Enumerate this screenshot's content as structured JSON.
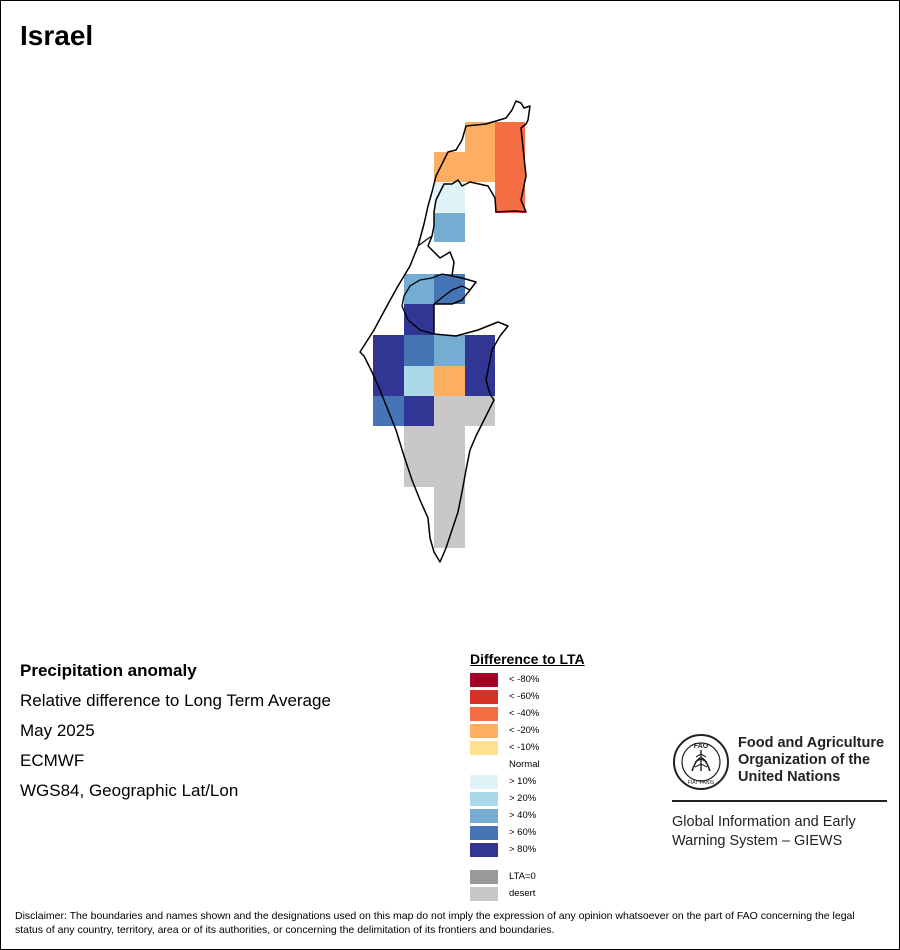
{
  "map_title": "Israel",
  "meta": {
    "line1": "Precipitation anomaly",
    "line2": "Relative difference to Long Term Average",
    "line3": "May 2025",
    "line4": "ECMWF",
    "line5": "WGS84, Geographic Lat/Lon"
  },
  "legend": {
    "title": "Difference to LTA",
    "items": [
      {
        "label": "< -80%",
        "color": "#a50026"
      },
      {
        "label": "< -60%",
        "color": "#d73027"
      },
      {
        "label": "< -40%",
        "color": "#f46d43"
      },
      {
        "label": "< -20%",
        "color": "#fdae61"
      },
      {
        "label": "< -10%",
        "color": "#fee090"
      },
      {
        "label": "Normal",
        "color": "#ffffff"
      },
      {
        "label": "> 10%",
        "color": "#e0f3f8"
      },
      {
        "label": "> 20%",
        "color": "#abd9e9"
      },
      {
        "label": "> 40%",
        "color": "#74add1"
      },
      {
        "label": "> 60%",
        "color": "#4575b4"
      },
      {
        "label": "> 80%",
        "color": "#313695"
      }
    ],
    "extra": [
      {
        "label": "LTA=0",
        "color": "#999999"
      },
      {
        "label": "desert",
        "color": "#c8c8c8"
      }
    ]
  },
  "org": {
    "name_line1": "Food and Agriculture",
    "name_line2": "Organization of the",
    "name_line3": "United Nations",
    "system_line1": "Global Information and Early",
    "system_line2": "Warning System – GIEWS",
    "logo_text": "FAO",
    "logo_motto": "FIAT PANIS"
  },
  "disclaimer": "Disclaimer: The boundaries and names shown and the designations used on this map do not imply the expression of any opinion whatsoever on the part of FAO concerning the legal status of any country, territory, area or of its authorities, or concerning the delimitation of its frontiers and boundaries."
}
